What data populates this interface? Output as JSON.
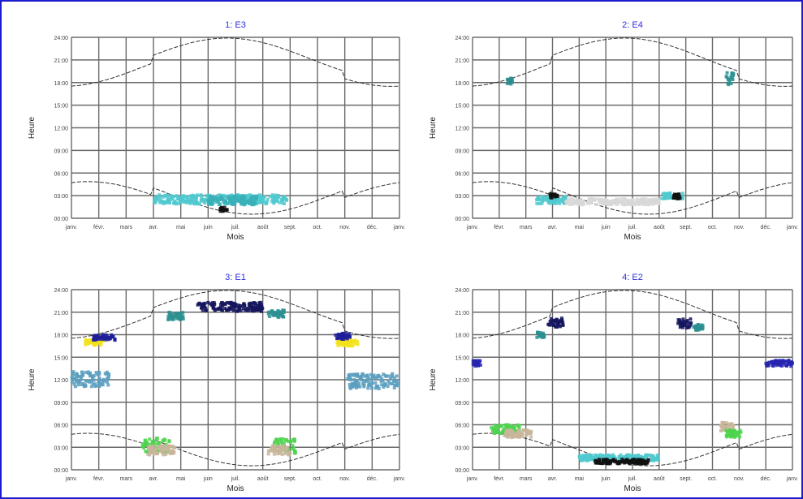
{
  "chart_data": [
    {
      "type": "scatter",
      "title": "1: E3",
      "xlabel": "Mois",
      "ylabel": "Heure",
      "x_ticks": [
        "janv.",
        "févr.",
        "mars",
        "avr.",
        "mai",
        "juin",
        "juil.",
        "août",
        "sept.",
        "oct.",
        "nov.",
        "déc.",
        "janv."
      ],
      "y_ticks": [
        "00:00",
        "03:00",
        "06:00",
        "09:00",
        "12:00",
        "15:00",
        "18:00",
        "21:00",
        "24:00"
      ],
      "xlim": [
        0,
        12
      ],
      "ylim": [
        0,
        24
      ],
      "grid": true,
      "clusters": [
        {
          "x_start": 3.0,
          "x_end": 7.9,
          "y_center": 2.5,
          "y_spread": 0.6,
          "color": "#4fc9cf"
        },
        {
          "x_start": 5.0,
          "x_end": 6.8,
          "y_center": 2.4,
          "y_spread": 0.6,
          "color": "#3ab0b8"
        },
        {
          "x_start": 5.4,
          "x_end": 5.7,
          "y_center": 1.2,
          "y_spread": 0.3,
          "color": "#111111"
        }
      ]
    },
    {
      "type": "scatter",
      "title": "2: E4",
      "xlabel": "Mois",
      "ylabel": "Heure",
      "x_ticks": [
        "janv.",
        "févr.",
        "mars",
        "avr.",
        "mai",
        "juin",
        "juil.",
        "août",
        "sept.",
        "oct.",
        "nov.",
        "déc.",
        "janv."
      ],
      "y_ticks": [
        "00:00",
        "03:00",
        "06:00",
        "09:00",
        "12:00",
        "15:00",
        "18:00",
        "21:00",
        "24:00"
      ],
      "xlim": [
        0,
        12
      ],
      "ylim": [
        0,
        24
      ],
      "grid": true,
      "clusters": [
        {
          "x_start": 1.3,
          "x_end": 1.5,
          "y_center": 18.2,
          "y_spread": 0.4,
          "color": "#2b8f90"
        },
        {
          "x_start": 2.4,
          "x_end": 3.5,
          "y_center": 2.4,
          "y_spread": 0.5,
          "color": "#4fc9cf"
        },
        {
          "x_start": 2.9,
          "x_end": 3.2,
          "y_center": 3.0,
          "y_spread": 0.3,
          "color": "#111111"
        },
        {
          "x_start": 3.5,
          "x_end": 7.0,
          "y_center": 2.2,
          "y_spread": 0.4,
          "color": "#d8d8d8"
        },
        {
          "x_start": 7.1,
          "x_end": 7.9,
          "y_center": 3.0,
          "y_spread": 0.4,
          "color": "#4fc9cf"
        },
        {
          "x_start": 7.5,
          "x_end": 7.8,
          "y_center": 2.9,
          "y_spread": 0.3,
          "color": "#111111"
        },
        {
          "x_start": 9.5,
          "x_end": 9.8,
          "y_center": 18.5,
          "y_spread": 0.8,
          "color": "#2b8f90"
        }
      ]
    },
    {
      "type": "scatter",
      "title": "3: E1",
      "xlabel": "Mois",
      "ylabel": "Heure",
      "x_ticks": [
        "janv.",
        "févr.",
        "mars",
        "avr.",
        "mai",
        "juin",
        "juil.",
        "août",
        "sept.",
        "oct.",
        "nov.",
        "déc.",
        "janv."
      ],
      "y_ticks": [
        "00:00",
        "03:00",
        "06:00",
        "09:00",
        "12:00",
        "15:00",
        "18:00",
        "21:00",
        "24:00"
      ],
      "xlim": [
        0,
        12
      ],
      "ylim": [
        0,
        24
      ],
      "grid": true,
      "clusters": [
        {
          "x_start": 0.0,
          "x_end": 1.4,
          "y_center": 12.1,
          "y_spread": 1.0,
          "color": "#5a9fc0"
        },
        {
          "x_start": 0.5,
          "x_end": 1.2,
          "y_center": 17.0,
          "y_spread": 0.4,
          "color": "#f2e21b"
        },
        {
          "x_start": 0.8,
          "x_end": 1.6,
          "y_center": 17.6,
          "y_spread": 0.4,
          "color": "#1f1f9a"
        },
        {
          "x_start": 2.6,
          "x_end": 3.6,
          "y_center": 3.2,
          "y_spread": 1.0,
          "color": "#4cd44c"
        },
        {
          "x_start": 2.8,
          "x_end": 3.8,
          "y_center": 2.6,
          "y_spread": 0.6,
          "color": "#c8b59a"
        },
        {
          "x_start": 3.5,
          "x_end": 4.1,
          "y_center": 20.5,
          "y_spread": 0.5,
          "color": "#2b8f90"
        },
        {
          "x_start": 4.6,
          "x_end": 7.0,
          "y_center": 21.7,
          "y_spread": 0.6,
          "color": "#15155e"
        },
        {
          "x_start": 7.2,
          "x_end": 7.8,
          "y_center": 20.8,
          "y_spread": 0.5,
          "color": "#2b8f90"
        },
        {
          "x_start": 7.4,
          "x_end": 8.2,
          "y_center": 3.2,
          "y_spread": 1.0,
          "color": "#4cd44c"
        },
        {
          "x_start": 7.2,
          "x_end": 8.0,
          "y_center": 2.6,
          "y_spread": 0.6,
          "color": "#c8b59a"
        },
        {
          "x_start": 9.7,
          "x_end": 10.5,
          "y_center": 16.9,
          "y_spread": 0.4,
          "color": "#f2e21b"
        },
        {
          "x_start": 9.6,
          "x_end": 10.2,
          "y_center": 17.8,
          "y_spread": 0.4,
          "color": "#1f1f9a"
        },
        {
          "x_start": 10.1,
          "x_end": 12.0,
          "y_center": 11.8,
          "y_spread": 1.0,
          "color": "#5a9fc0"
        }
      ]
    },
    {
      "type": "scatter",
      "title": "4: E2",
      "xlabel": "Mois",
      "ylabel": "Heure",
      "x_ticks": [
        "janv.",
        "févr.",
        "mars",
        "avr.",
        "mai",
        "juin",
        "juil.",
        "août",
        "sept.",
        "oct.",
        "nov.",
        "déc.",
        "janv."
      ],
      "y_ticks": [
        "00:00",
        "03:00",
        "06:00",
        "09:00",
        "12:00",
        "15:00",
        "18:00",
        "21:00",
        "24:00"
      ],
      "xlim": [
        0,
        12
      ],
      "ylim": [
        0,
        24
      ],
      "grid": true,
      "clusters": [
        {
          "x_start": 0.0,
          "x_end": 0.3,
          "y_center": 14.2,
          "y_spread": 0.4,
          "color": "#2424b0"
        },
        {
          "x_start": 0.7,
          "x_end": 1.8,
          "y_center": 5.4,
          "y_spread": 0.6,
          "color": "#4cd44c"
        },
        {
          "x_start": 1.2,
          "x_end": 2.2,
          "y_center": 4.8,
          "y_spread": 0.5,
          "color": "#c8b59a"
        },
        {
          "x_start": 2.4,
          "x_end": 2.7,
          "y_center": 18.0,
          "y_spread": 0.4,
          "color": "#2b8f90"
        },
        {
          "x_start": 2.8,
          "x_end": 3.4,
          "y_center": 19.6,
          "y_spread": 0.6,
          "color": "#15155e"
        },
        {
          "x_start": 4.0,
          "x_end": 7.0,
          "y_center": 1.6,
          "y_spread": 0.4,
          "color": "#4fc9cf"
        },
        {
          "x_start": 4.6,
          "x_end": 6.6,
          "y_center": 1.1,
          "y_spread": 0.3,
          "color": "#111111"
        },
        {
          "x_start": 7.7,
          "x_end": 8.2,
          "y_center": 19.5,
          "y_spread": 0.6,
          "color": "#15155e"
        },
        {
          "x_start": 8.3,
          "x_end": 8.7,
          "y_center": 19.0,
          "y_spread": 0.4,
          "color": "#2b8f90"
        },
        {
          "x_start": 9.3,
          "x_end": 9.8,
          "y_center": 5.8,
          "y_spread": 0.6,
          "color": "#c8b59a"
        },
        {
          "x_start": 9.5,
          "x_end": 10.1,
          "y_center": 4.8,
          "y_spread": 0.5,
          "color": "#4cd44c"
        },
        {
          "x_start": 11.0,
          "x_end": 12.0,
          "y_center": 14.2,
          "y_spread": 0.4,
          "color": "#2424b0"
        }
      ]
    }
  ]
}
